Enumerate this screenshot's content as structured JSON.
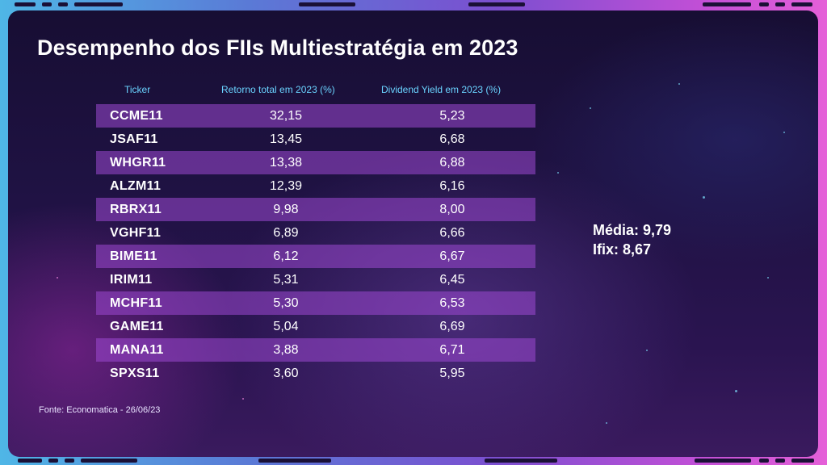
{
  "title": "Desempenho dos FIIs Multiestratégia em 2023",
  "table": {
    "headers": {
      "ticker": "Ticker",
      "return": "Retorno total em 2023 (%)",
      "dividend_yield": "Dividend Yield em 2023 (%)"
    },
    "rows": [
      {
        "ticker": "CCME11",
        "return": "32,15",
        "dy": "5,23"
      },
      {
        "ticker": "JSAF11",
        "return": "13,45",
        "dy": "6,68"
      },
      {
        "ticker": "WHGR11",
        "return": "13,38",
        "dy": "6,88"
      },
      {
        "ticker": "ALZM11",
        "return": "12,39",
        "dy": "6,16"
      },
      {
        "ticker": "RBRX11",
        "return": "9,98",
        "dy": "8,00"
      },
      {
        "ticker": "VGHF11",
        "return": "6,89",
        "dy": "6,66"
      },
      {
        "ticker": "BIME11",
        "return": "6,12",
        "dy": "6,67"
      },
      {
        "ticker": "IRIM11",
        "return": "5,31",
        "dy": "6,45"
      },
      {
        "ticker": "MCHF11",
        "return": "5,30",
        "dy": "6,53"
      },
      {
        "ticker": "GAME11",
        "return": "5,04",
        "dy": "6,69"
      },
      {
        "ticker": "MANA11",
        "return": "3,88",
        "dy": "6,71"
      },
      {
        "ticker": "SPXS11",
        "return": "3,60",
        "dy": "5,95"
      }
    ]
  },
  "summary": {
    "average": "Média: 9,79",
    "ifix": "Ifix: 8,67"
  },
  "source": "Fonte: Economatica - 26/06/23",
  "colors": {
    "header_text": "#6ad3ff",
    "stripe": "#9c48d2",
    "panel_bg": "#1f1243"
  }
}
